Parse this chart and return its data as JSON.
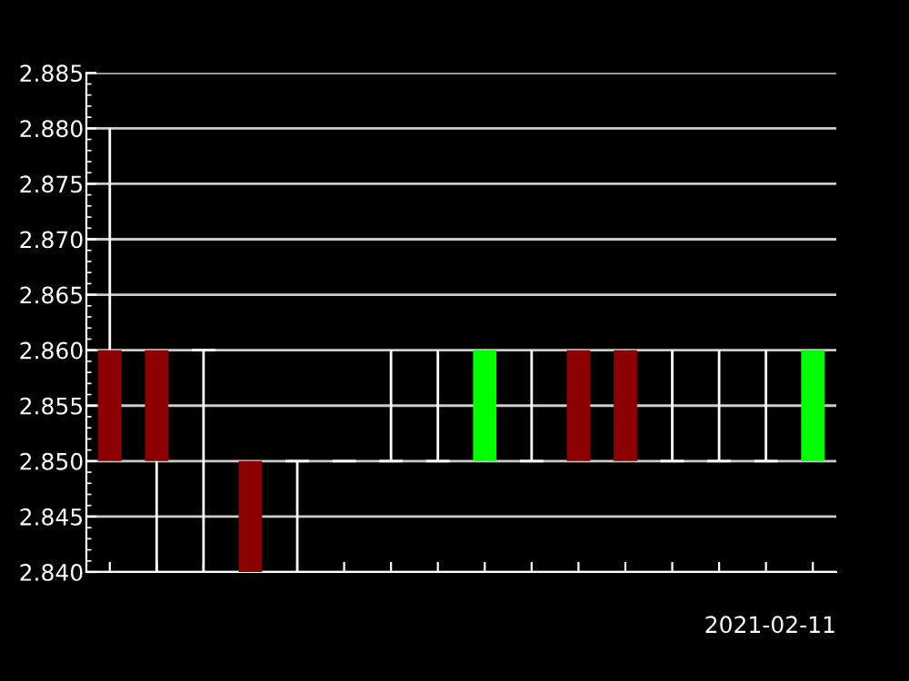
{
  "chart_data": {
    "type": "candlestick",
    "categories": [
      null,
      null,
      null,
      null,
      null,
      null,
      null,
      null,
      null,
      null,
      null,
      null,
      null,
      null,
      null,
      null
    ],
    "ohlc": [
      [
        2.86,
        2.88,
        2.85,
        2.85
      ],
      [
        2.86,
        2.86,
        2.84,
        2.85
      ],
      [
        2.86,
        2.86,
        2.84,
        2.86
      ],
      [
        2.85,
        2.85,
        2.84,
        2.84
      ],
      [
        2.85,
        2.85,
        2.84,
        2.85
      ],
      [
        2.85,
        2.85,
        2.85,
        2.85
      ],
      [
        2.85,
        2.86,
        2.85,
        2.85
      ],
      [
        2.85,
        2.86,
        2.85,
        2.85
      ],
      [
        2.85,
        2.86,
        2.85,
        2.86
      ],
      [
        2.85,
        2.86,
        2.85,
        2.85
      ],
      [
        2.86,
        2.86,
        2.85,
        2.85
      ],
      [
        2.86,
        2.86,
        2.85,
        2.85
      ],
      [
        2.85,
        2.86,
        2.85,
        2.85
      ],
      [
        2.85,
        2.86,
        2.85,
        2.85
      ],
      [
        2.85,
        2.86,
        2.85,
        2.85
      ],
      [
        2.85,
        2.86,
        2.85,
        2.86
      ]
    ],
    "colors": [
      "#8b0000",
      "#8b0000",
      "#ffffff",
      "#8b0000",
      "#ffffff",
      "#ffffff",
      "#ffffff",
      "#ffffff",
      "#00ff00",
      "#ffffff",
      "#8b0000",
      "#8b0000",
      "#ffffff",
      "#ffffff",
      "#ffffff",
      "#00ff00"
    ],
    "ylim": [
      2.84,
      2.885
    ],
    "yticks": [
      {
        "value": 2.84,
        "label": "2.840"
      },
      {
        "value": 2.845,
        "label": "2.845"
      },
      {
        "value": 2.85,
        "label": "2.850"
      },
      {
        "value": 2.855,
        "label": "2.855"
      },
      {
        "value": 2.86,
        "label": "2.860"
      },
      {
        "value": 2.865,
        "label": "2.865"
      },
      {
        "value": 2.87,
        "label": "2.870"
      },
      {
        "value": 2.875,
        "label": "2.875"
      },
      {
        "value": 2.88,
        "label": "2.880"
      },
      {
        "value": 2.885,
        "label": "2.885"
      }
    ],
    "grid": "y",
    "annotations": [
      "2021-02-11"
    ]
  }
}
